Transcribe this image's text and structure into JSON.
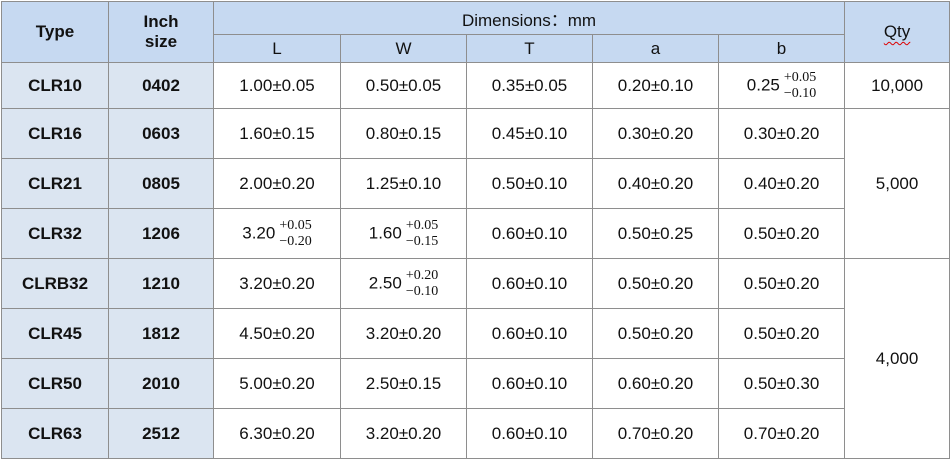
{
  "header": {
    "type": "Type",
    "inch_size": "Inch size",
    "dimensions": "Dimensions：mm",
    "columns": [
      "L",
      "W",
      "T",
      "a",
      "b"
    ],
    "qty": "Qty"
  },
  "rows": [
    {
      "type": "CLR10",
      "inch": "0402",
      "dims": [
        "1.00±0.05",
        "0.50±0.05",
        "0.35±0.05",
        "0.20±0.10",
        {
          "nominal": "0.25",
          "upper": "+0.05",
          "lower": "−0.10"
        }
      ],
      "qty": "10,000"
    },
    {
      "type": "CLR16",
      "inch": "0603",
      "dims": [
        "1.60±0.15",
        "0.80±0.15",
        "0.45±0.10",
        "0.30±0.20",
        "0.30±0.20"
      ],
      "qty": "5,000"
    },
    {
      "type": "CLR21",
      "inch": "0805",
      "dims": [
        "2.00±0.20",
        "1.25±0.10",
        "0.50±0.10",
        "0.40±0.20",
        "0.40±0.20"
      ]
    },
    {
      "type": "CLR32",
      "inch": "1206",
      "dims": [
        {
          "nominal": "3.20",
          "upper": "+0.05",
          "lower": "−0.20"
        },
        {
          "nominal": "1.60",
          "upper": "+0.05",
          "lower": "−0.15"
        },
        "0.60±0.10",
        "0.50±0.25",
        "0.50±0.20"
      ]
    },
    {
      "type": "CLRB32",
      "inch": "1210",
      "dims": [
        "3.20±0.20",
        {
          "nominal": "2.50",
          "upper": "+0.20",
          "lower": "−0.10"
        },
        "0.60±0.10",
        "0.50±0.20",
        "0.50±0.20"
      ],
      "qty": "4,000"
    },
    {
      "type": "CLR45",
      "inch": "1812",
      "dims": [
        "4.50±0.20",
        "3.20±0.20",
        "0.60±0.10",
        "0.50±0.20",
        "0.50±0.20"
      ]
    },
    {
      "type": "CLR50",
      "inch": "2010",
      "dims": [
        "5.00±0.20",
        "2.50±0.15",
        "0.60±0.10",
        "0.60±0.20",
        "0.50±0.30"
      ]
    },
    {
      "type": "CLR63",
      "inch": "2512",
      "dims": [
        "6.30±0.20",
        "3.20±0.20",
        "0.60±0.10",
        "0.70±0.20",
        "0.70±0.20"
      ]
    }
  ]
}
